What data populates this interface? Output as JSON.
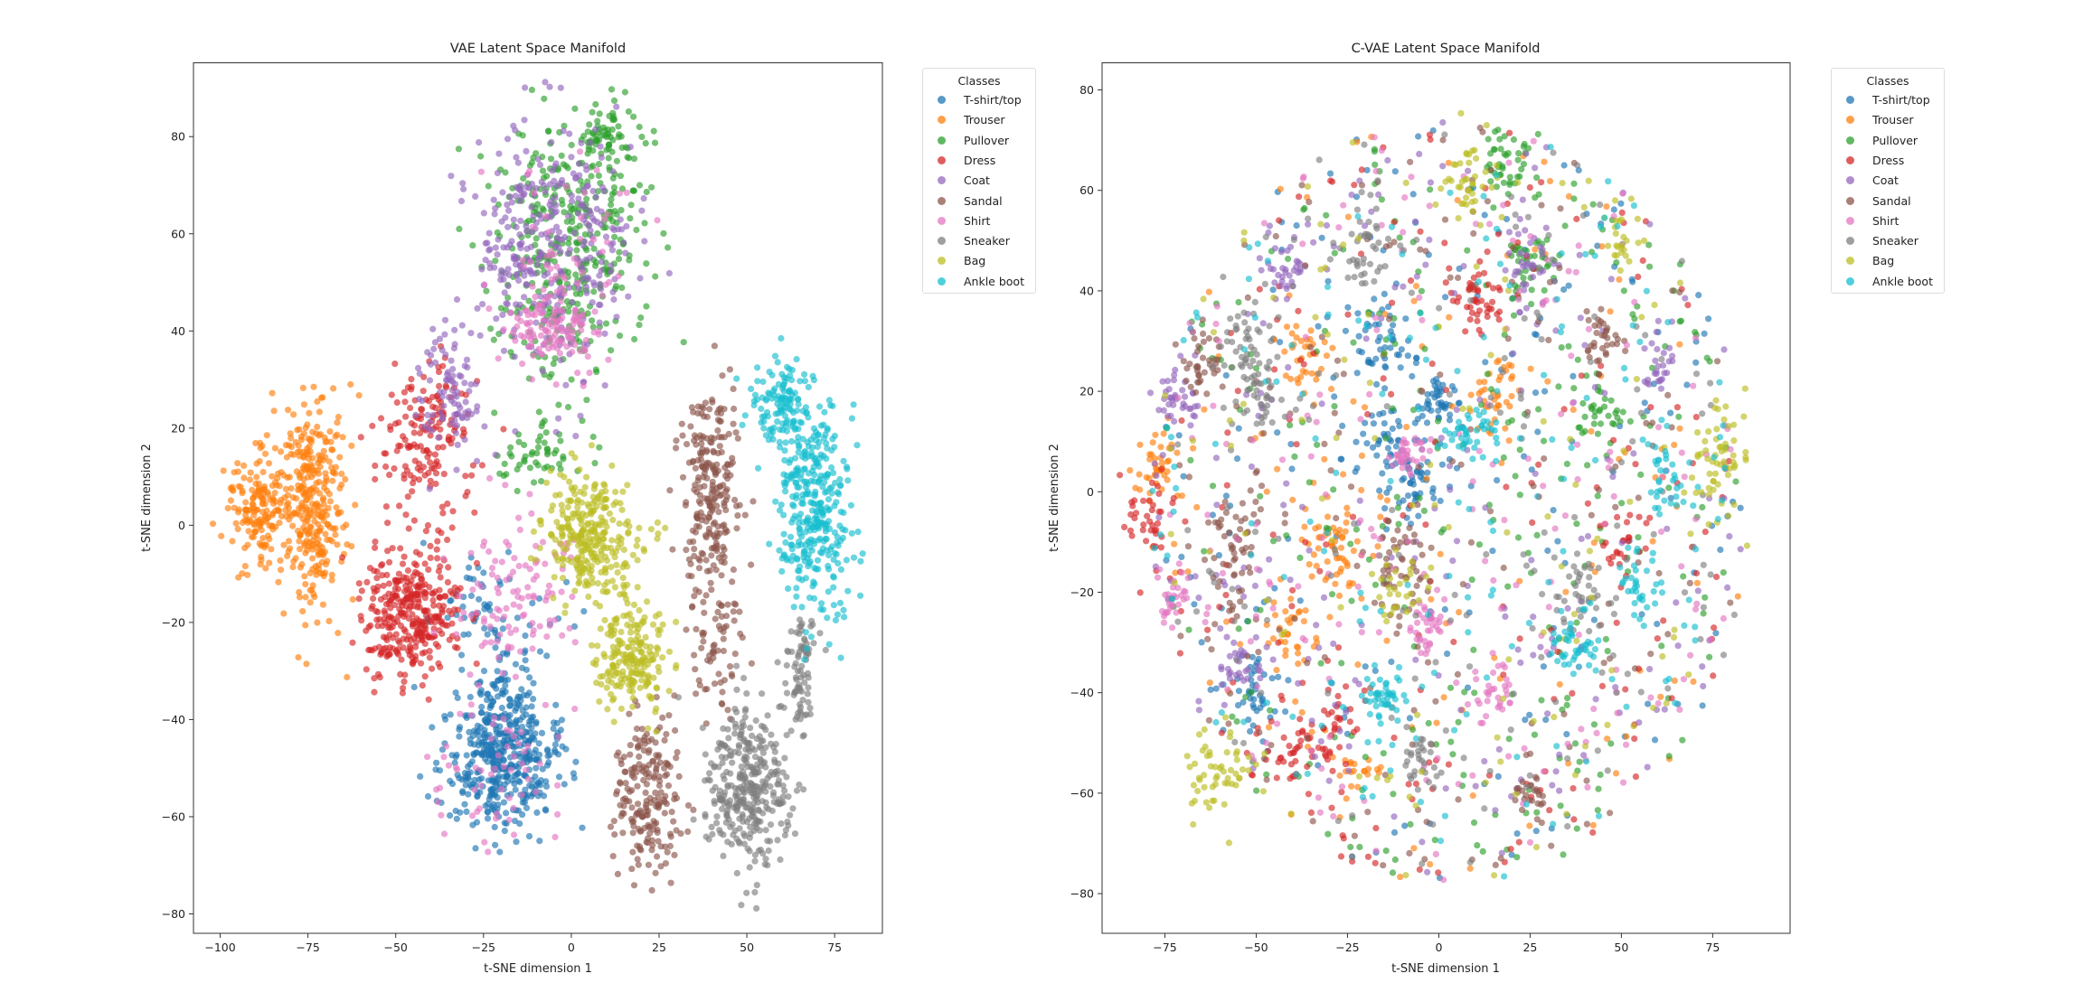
{
  "chart_data": [
    {
      "type": "scatter",
      "title": "VAE Latent Space Manifold",
      "xlabel": "t-SNE dimension 1",
      "ylabel": "t-SNE dimension 2",
      "xlim": [
        -107.6,
        88.6
      ],
      "ylim": [
        -84,
        95.2
      ],
      "xticks": [
        -100,
        -75,
        -50,
        -25,
        0,
        25,
        50,
        75
      ],
      "yticks": [
        -80,
        -60,
        -40,
        -20,
        0,
        20,
        40,
        60,
        80
      ],
      "grid": false,
      "legend": {
        "title": "Classes",
        "placement": "outside-right"
      },
      "series": [
        {
          "name": "T-shirt/top",
          "color": "#1f77b4",
          "clusters": [
            [
              -20,
              -47,
              8,
              8,
              480
            ],
            [
              -22,
              -20,
              9,
              8,
              70
            ]
          ]
        },
        {
          "name": "Trouser",
          "color": "#ff7f0e",
          "clusters": [
            [
              -90,
              3,
              4,
              6,
              150
            ],
            [
              -74,
              5,
              5,
              12,
              330
            ]
          ]
        },
        {
          "name": "Pullover",
          "color": "#2ca02c",
          "clusters": [
            [
              0,
              58,
              11,
              14,
              380
            ],
            [
              10,
              80,
              4,
              3,
              60
            ],
            [
              -10,
              15,
              6,
              4,
              50
            ]
          ]
        },
        {
          "name": "Dress",
          "color": "#d62728",
          "clusters": [
            [
              -46,
              -18,
              7,
              7,
              340
            ],
            [
              -42,
              18,
              7,
              8,
              160
            ]
          ]
        },
        {
          "name": "Coat",
          "color": "#9467bd",
          "clusters": [
            [
              -6,
              58,
              11,
              13,
              340
            ],
            [
              -35,
              28,
              5,
              6,
              90
            ]
          ]
        },
        {
          "name": "Sandal",
          "color": "#8c564b",
          "clusters": [
            [
              40,
              6,
              4,
              11,
              240
            ],
            [
              22,
              -56,
              5,
              8,
              200
            ],
            [
              42,
              -26,
              4,
              7,
              60
            ]
          ]
        },
        {
          "name": "Shirt",
          "color": "#e377c2",
          "clusters": [
            [
              -6,
              40,
              6,
              4,
              110
            ],
            [
              -15,
              -15,
              9,
              9,
              110
            ],
            [
              -22,
              -50,
              9,
              7,
              60
            ],
            [
              0,
              58,
              10,
              12,
              60
            ]
          ]
        },
        {
          "name": "Sneaker",
          "color": "#7f7f7f",
          "clusters": [
            [
              50,
              -54,
              6,
              8,
              340
            ],
            [
              66,
              -30,
              3,
              6,
              80
            ]
          ]
        },
        {
          "name": "Bag",
          "color": "#bcbd22",
          "clusters": [
            [
              5,
              -3,
              7,
              6,
              290
            ],
            [
              17,
              -28,
              5,
              6,
              200
            ]
          ]
        },
        {
          "name": "Ankle boot",
          "color": "#17becf",
          "clusters": [
            [
              69,
              4,
              5,
              11,
              340
            ],
            [
              60,
              25,
              4,
              5,
              110
            ]
          ]
        }
      ]
    },
    {
      "type": "scatter",
      "title": "C-VAE Latent Space Manifold",
      "xlabel": "t-SNE dimension 1",
      "ylabel": "t-SNE dimension 2",
      "xlim": [
        -92.2,
        96.2
      ],
      "ylim": [
        -87.9,
        85.4
      ],
      "xticks": [
        -75,
        -50,
        -25,
        0,
        25,
        50,
        75
      ],
      "yticks": [
        -80,
        -60,
        -40,
        -20,
        0,
        20,
        40,
        60,
        80
      ],
      "grid": false,
      "legend": {
        "title": "Classes",
        "placement": "outside-right"
      },
      "series": [
        {
          "name": "T-shirt/top",
          "color": "#1f77b4",
          "clusters": [
            [
              -15,
              30,
              4,
              4,
              45
            ],
            [
              -15,
              10,
              4,
              4,
              45
            ],
            [
              -50,
              -40,
              4,
              4,
              40
            ],
            [
              -5,
              2,
              5,
              4,
              45
            ],
            [
              0,
              18,
              3,
              3,
              40
            ]
          ],
          "diffuse": 180
        },
        {
          "name": "Trouser",
          "color": "#ff7f0e",
          "clusters": [
            [
              -28,
              -10,
              5,
              5,
              60
            ],
            [
              -37,
              27,
              3,
              4,
              35
            ],
            [
              17,
              20,
              4,
              5,
              40
            ],
            [
              -78,
              4,
              3,
              4,
              40
            ],
            [
              -40,
              -27,
              3,
              3,
              30
            ],
            [
              -22,
              -56,
              3,
              2,
              20
            ]
          ],
          "diffuse": 120
        },
        {
          "name": "Pullover",
          "color": "#2ca02c",
          "clusters": [
            [
              25,
              45,
              4,
              4,
              40
            ],
            [
              20,
              65,
              4,
              4,
              40
            ],
            [
              45,
              15,
              4,
              4,
              35
            ]
          ],
          "diffuse": 260
        },
        {
          "name": "Dress",
          "color": "#d62728",
          "clusters": [
            [
              10,
              38,
              4,
              3,
              45
            ],
            [
              -40,
              -50,
              4,
              4,
              35
            ],
            [
              -80,
              -5,
              3,
              4,
              35
            ],
            [
              -28,
              -47,
              3,
              4,
              35
            ],
            [
              50,
              -10,
              3,
              3,
              25
            ]
          ],
          "diffuse": 180
        },
        {
          "name": "Coat",
          "color": "#9467bd",
          "clusters": [
            [
              -72,
              18,
              3,
              3,
              35
            ],
            [
              -40,
              45,
              4,
              3,
              35
            ],
            [
              25,
              45,
              4,
              4,
              35
            ],
            [
              60,
              25,
              3,
              3,
              25
            ],
            [
              -55,
              -35,
              3,
              3,
              30
            ]
          ],
          "diffuse": 200
        },
        {
          "name": "Sandal",
          "color": "#8c564b",
          "clusters": [
            [
              -65,
              25,
              3,
              3,
              35
            ],
            [
              -55,
              -10,
              4,
              6,
              55
            ],
            [
              -10,
              -15,
              4,
              5,
              50
            ],
            [
              45,
              30,
              3,
              3,
              35
            ],
            [
              25,
              -60,
              2,
              3,
              25
            ]
          ],
          "diffuse": 160
        },
        {
          "name": "Shirt",
          "color": "#e377c2",
          "clusters": [
            [
              -73,
              -21,
              2,
              3,
              30
            ],
            [
              -8,
              8,
              3,
              2,
              35
            ],
            [
              -3,
              -27,
              3,
              3,
              35
            ],
            [
              15,
              -40,
              3,
              3,
              30
            ]
          ],
          "diffuse": 200
        },
        {
          "name": "Sneaker",
          "color": "#7f7f7f",
          "clusters": [
            [
              -52,
              30,
              4,
              4,
              40
            ],
            [
              -50,
              20,
              3,
              4,
              35
            ],
            [
              -20,
              48,
              4,
              4,
              40
            ],
            [
              38,
              -20,
              4,
              4,
              40
            ],
            [
              -5,
              -53,
              3,
              3,
              30
            ]
          ],
          "diffuse": 160
        },
        {
          "name": "Bag",
          "color": "#bcbd22",
          "clusters": [
            [
              8,
              62,
              4,
              4,
              40
            ],
            [
              -60,
              -55,
              5,
              5,
              55
            ],
            [
              77,
              6,
              4,
              5,
              55
            ],
            [
              -10,
              -20,
              4,
              4,
              30
            ],
            [
              50,
              50,
              2,
              3,
              20
            ]
          ],
          "diffuse": 120
        },
        {
          "name": "Ankle boot",
          "color": "#17becf",
          "clusters": [
            [
              10,
              12,
              4,
              3,
              45
            ],
            [
              -15,
              -40,
              4,
              3,
              45
            ],
            [
              37,
              -30,
              3,
              4,
              40
            ],
            [
              62,
              2,
              3,
              5,
              35
            ],
            [
              55,
              -20,
              3,
              3,
              30
            ]
          ],
          "diffuse": 160
        }
      ]
    }
  ]
}
